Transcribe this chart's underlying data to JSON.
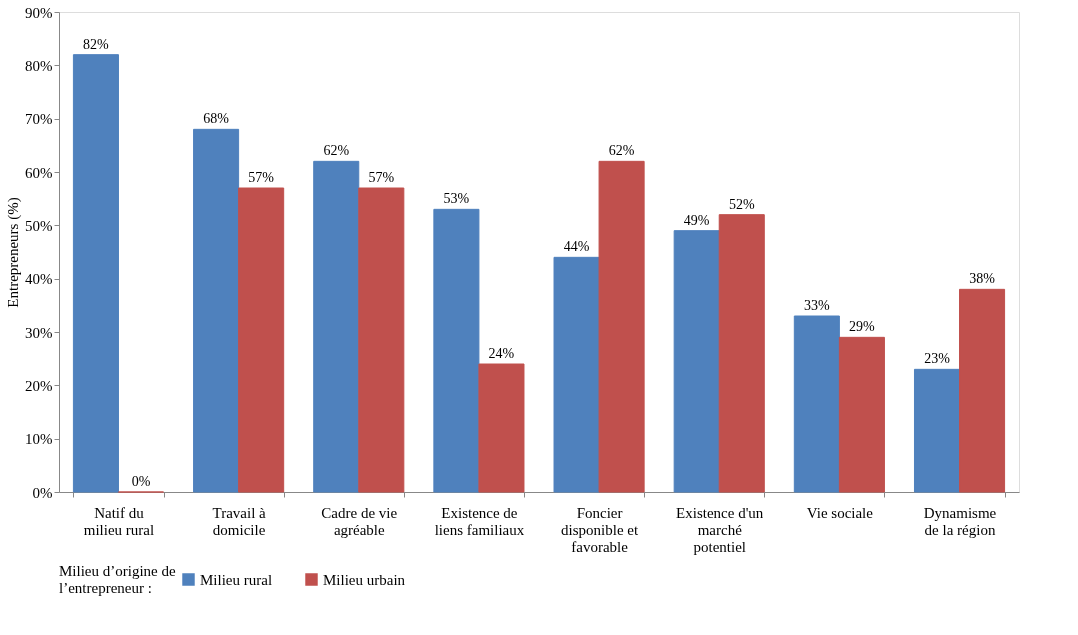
{
  "chart_data": {
    "type": "bar",
    "ylabel": "Entrepreneurs (%)",
    "legend_title": "Milieu d’origine de\nl’entrepreneur :",
    "legend": "bottom",
    "grid": false,
    "categories": [
      "Natif du\nmilieu rural",
      "Travail à\ndomicile",
      "Cadre de vie\nagréable",
      "Existence de\nliens familiaux",
      "Foncier\ndisponible et\nfavorable",
      "Existence d'un\nmarché\npotentiel",
      "Vie sociale",
      "Dynamisme\nde la région"
    ],
    "series": [
      {
        "name": "Milieu rural",
        "color": "#4f81bd",
        "values": [
          82,
          68,
          62,
          53,
          44,
          49,
          33,
          23
        ],
        "value_labels": [
          "82%",
          "68%",
          "62%",
          "53%",
          "44%",
          "49%",
          "33%",
          "23%"
        ]
      },
      {
        "name": "Milieu urbain",
        "color": "#c0504d",
        "values": [
          0,
          57,
          57,
          24,
          62,
          52,
          29,
          38
        ],
        "value_labels": [
          "0%",
          "57%",
          "57%",
          "24%",
          "62%",
          "52%",
          "29%",
          "38%"
        ]
      }
    ],
    "ylim": [
      0,
      90
    ],
    "yticks": [
      {
        "value": 0,
        "label": "0%"
      },
      {
        "value": 10,
        "label": "10%"
      },
      {
        "value": 20,
        "label": "20%"
      },
      {
        "value": 30,
        "label": "30%"
      },
      {
        "value": 40,
        "label": "40%"
      },
      {
        "value": 50,
        "label": "50%"
      },
      {
        "value": 60,
        "label": "60%"
      },
      {
        "value": 70,
        "label": "70%"
      },
      {
        "value": 80,
        "label": "80%"
      },
      {
        "value": 90,
        "label": "90%"
      }
    ]
  }
}
